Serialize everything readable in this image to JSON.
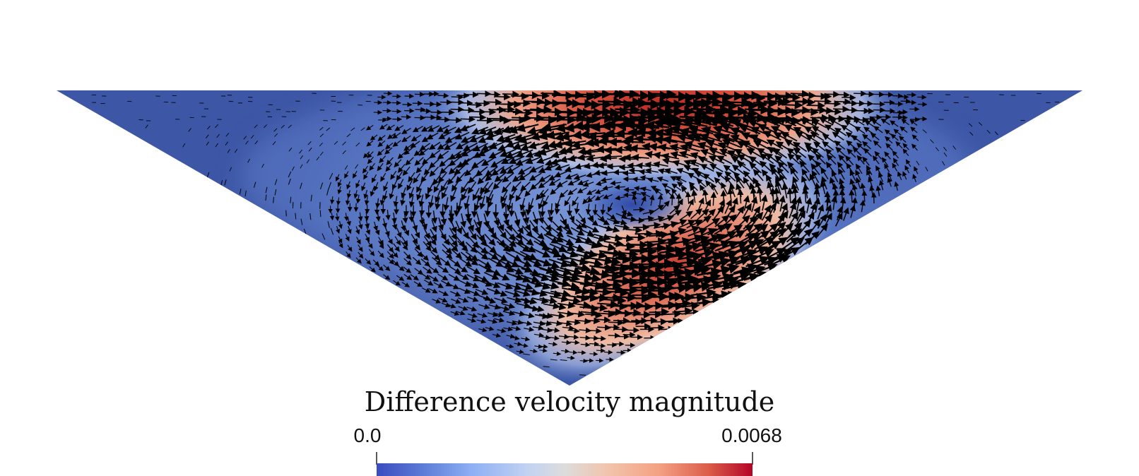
{
  "figure": {
    "description_field": "velocity difference field in triangular cavity",
    "colormap": {
      "name": "coolwarm",
      "stops": [
        "#3b4cc0",
        "#5a78d4",
        "#88aaf0",
        "#b9cff5",
        "#dddcdc",
        "#f2c1a8",
        "#f4a282",
        "#e0654f",
        "#b40426"
      ]
    },
    "domain_colors": {
      "background_low": "#3a54a4",
      "mid": "#6f8fd0",
      "high": "#d8523e",
      "peak": "#b9271f"
    },
    "arrow_color": "#000000"
  },
  "colorbar": {
    "title": "Difference velocity magnitude",
    "min_label": "0.0",
    "max_label": "0.0068",
    "min": 0.0,
    "max": 0.0068
  }
}
